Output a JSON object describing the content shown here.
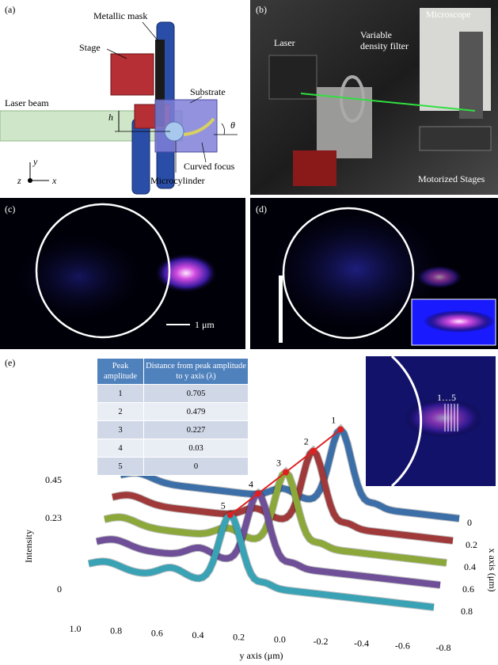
{
  "panel_a": {
    "label": "(a)",
    "metallic_mask": "Metallic mask",
    "stage": "Stage",
    "laser_beam": "Laser beam",
    "h": "h",
    "substrate": "Substrate",
    "theta": "θ",
    "curved_focus": "Curved focus",
    "microcylinder": "Microcylinder",
    "axis_y": "y",
    "axis_z": "z",
    "axis_x": "x"
  },
  "panel_b": {
    "label": "(b)",
    "microscope": "Microscope",
    "laser": "Laser",
    "filter": [
      "Variable",
      "density filter"
    ],
    "stages": "Motorized Stages"
  },
  "panel_c": {
    "label": "(c)",
    "scale_bar": "1 μm"
  },
  "panel_d": {
    "label": "(d)"
  },
  "panel_e": {
    "label": "(e)",
    "table": {
      "header": [
        "Peak amplitude",
        "Distance from peak amplitude to y axis (λ)"
      ],
      "rows": [
        [
          "1",
          "0.705"
        ],
        [
          "2",
          "0.479"
        ],
        [
          "3",
          "0.227"
        ],
        [
          "4",
          "0.03"
        ],
        [
          "5",
          "0"
        ]
      ]
    },
    "peaks": [
      "1",
      "2",
      "3",
      "4",
      "5"
    ],
    "inset_label": "1…5",
    "z_axis_label": "Intensity",
    "z_ticks": [
      "0.45",
      "0.23",
      "0"
    ],
    "y_ticks": [
      "1.0",
      "0.8",
      "0.6",
      "0.4",
      "0.2",
      "0.0",
      "-0.2",
      "-0.4",
      "-0.6",
      "-0.8"
    ],
    "x_ticks": [
      "0",
      "0.2",
      "0.4",
      "0.6",
      "0.8"
    ],
    "y_axis_label": "y axis (μm)",
    "x_axis_label": "x axis (μm)"
  }
}
